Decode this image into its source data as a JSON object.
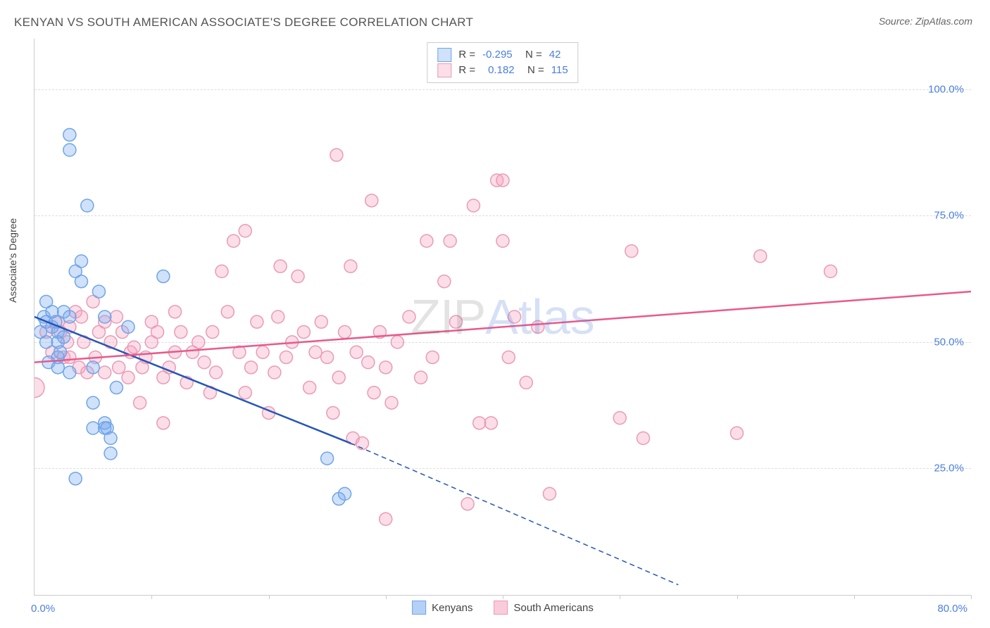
{
  "title": "KENYAN VS SOUTH AMERICAN ASSOCIATE'S DEGREE CORRELATION CHART",
  "source": "Source: ZipAtlas.com",
  "ylabel": "Associate's Degree",
  "watermark": {
    "zip": "ZIP",
    "atlas": "Atlas"
  },
  "chart": {
    "type": "scatter",
    "xlim": [
      0,
      80
    ],
    "ylim": [
      0,
      110
    ],
    "xticks": [
      10,
      20,
      30,
      40,
      50,
      60,
      70,
      80
    ],
    "yticks": [
      25,
      50,
      75,
      100
    ],
    "ytick_labels": [
      "25.0%",
      "50.0%",
      "75.0%",
      "100.0%"
    ],
    "xaxis_left_label": "0.0%",
    "xaxis_right_label": "80.0%",
    "background_color": "#ffffff",
    "grid_color": "#dddddd",
    "axis_color": "#cccccc",
    "tick_label_color": "#4a7fe0",
    "marker_radius": 9,
    "marker_radius_large": 14,
    "marker_stroke_width": 1.5,
    "trend_line_width": 2.5,
    "dash_pattern": "7,5",
    "series": [
      {
        "name": "Kenyans",
        "fill_color": "rgba(120,170,240,0.35)",
        "stroke_color": "#6fa5e8",
        "line_color": "#2456b8",
        "R": "-0.295",
        "N": "42",
        "trend": {
          "x1": 0,
          "y1": 55,
          "x2": 27,
          "y2": 30,
          "dash_to_x": 55,
          "dash_to_y": 2
        },
        "points": [
          [
            0.5,
            52
          ],
          [
            0.8,
            55
          ],
          [
            1,
            58
          ],
          [
            1,
            54
          ],
          [
            1,
            50
          ],
          [
            1.2,
            46
          ],
          [
            1.5,
            56
          ],
          [
            1.5,
            53
          ],
          [
            1.8,
            54
          ],
          [
            2,
            52
          ],
          [
            2,
            47
          ],
          [
            2,
            45
          ],
          [
            2,
            50
          ],
          [
            2.2,
            48
          ],
          [
            2.5,
            56
          ],
          [
            2.5,
            51
          ],
          [
            3,
            44
          ],
          [
            3,
            55
          ],
          [
            3,
            91
          ],
          [
            3,
            88
          ],
          [
            3.5,
            23
          ],
          [
            3.5,
            64
          ],
          [
            4,
            66
          ],
          [
            4,
            62
          ],
          [
            4.5,
            77
          ],
          [
            5,
            45
          ],
          [
            5,
            38
          ],
          [
            5,
            33
          ],
          [
            5.5,
            60
          ],
          [
            6,
            55
          ],
          [
            6,
            34
          ],
          [
            6,
            33
          ],
          [
            6.2,
            33
          ],
          [
            6.5,
            31
          ],
          [
            6.5,
            28
          ],
          [
            7,
            41
          ],
          [
            8,
            53
          ],
          [
            11,
            63
          ],
          [
            25,
            27
          ],
          [
            26,
            19
          ],
          [
            26.5,
            20
          ]
        ]
      },
      {
        "name": "South Americans",
        "fill_color": "rgba(245,160,190,0.35)",
        "stroke_color": "#ea9bb5",
        "line_color": "#e85a8c",
        "R": "0.182",
        "N": "115",
        "trend": {
          "x1": 0,
          "y1": 46,
          "x2": 80,
          "y2": 60
        },
        "points": [
          [
            0,
            41,
            "large"
          ],
          [
            1,
            52
          ],
          [
            1.5,
            48
          ],
          [
            2,
            54
          ],
          [
            2.2,
            52
          ],
          [
            2.5,
            47
          ],
          [
            2.8,
            50
          ],
          [
            3,
            53
          ],
          [
            3,
            47
          ],
          [
            3.5,
            56
          ],
          [
            3.8,
            45
          ],
          [
            4,
            55
          ],
          [
            4.2,
            50
          ],
          [
            4.5,
            44
          ],
          [
            5,
            58
          ],
          [
            5.2,
            47
          ],
          [
            5.5,
            52
          ],
          [
            6,
            54
          ],
          [
            6,
            44
          ],
          [
            6.5,
            50
          ],
          [
            7,
            55
          ],
          [
            7.2,
            45
          ],
          [
            7.5,
            52
          ],
          [
            8,
            43
          ],
          [
            8.2,
            48
          ],
          [
            8.5,
            49
          ],
          [
            9,
            38
          ],
          [
            9.2,
            45
          ],
          [
            9.5,
            47
          ],
          [
            10,
            50
          ],
          [
            10,
            54
          ],
          [
            10.5,
            52
          ],
          [
            11,
            43
          ],
          [
            11,
            34
          ],
          [
            11.5,
            45
          ],
          [
            12,
            56
          ],
          [
            12,
            48
          ],
          [
            12.5,
            52
          ],
          [
            13,
            42
          ],
          [
            13.5,
            48
          ],
          [
            14,
            50
          ],
          [
            14.5,
            46
          ],
          [
            15,
            40
          ],
          [
            15.2,
            52
          ],
          [
            15.5,
            44
          ],
          [
            16,
            64
          ],
          [
            16.5,
            56
          ],
          [
            17,
            70
          ],
          [
            17.5,
            48
          ],
          [
            18,
            40
          ],
          [
            18,
            72
          ],
          [
            18.5,
            45
          ],
          [
            19,
            54
          ],
          [
            19.5,
            48
          ],
          [
            20,
            36
          ],
          [
            20.5,
            44
          ],
          [
            20.8,
            55
          ],
          [
            21,
            65
          ],
          [
            21.5,
            47
          ],
          [
            22,
            50
          ],
          [
            22.5,
            63
          ],
          [
            23,
            52
          ],
          [
            23.5,
            41
          ],
          [
            24,
            48
          ],
          [
            24.5,
            54
          ],
          [
            25,
            47
          ],
          [
            25.5,
            36
          ],
          [
            25.8,
            87
          ],
          [
            26,
            43
          ],
          [
            26.5,
            52
          ],
          [
            27,
            65
          ],
          [
            27.2,
            31
          ],
          [
            27.5,
            48
          ],
          [
            28,
            30
          ],
          [
            28.5,
            46
          ],
          [
            28.8,
            78
          ],
          [
            29,
            40
          ],
          [
            29.5,
            52
          ],
          [
            30,
            45
          ],
          [
            30,
            15
          ],
          [
            30.5,
            38
          ],
          [
            31,
            50
          ],
          [
            32,
            55
          ],
          [
            33,
            43
          ],
          [
            33.5,
            70
          ],
          [
            34,
            47
          ],
          [
            35,
            62
          ],
          [
            35.5,
            70
          ],
          [
            36,
            54
          ],
          [
            37,
            18
          ],
          [
            37.5,
            77
          ],
          [
            38,
            34
          ],
          [
            39,
            34
          ],
          [
            39.5,
            82
          ],
          [
            40,
            70
          ],
          [
            40,
            82
          ],
          [
            40.5,
            47
          ],
          [
            41,
            55
          ],
          [
            42,
            42
          ],
          [
            43,
            53
          ],
          [
            44,
            20
          ],
          [
            50,
            35
          ],
          [
            51,
            68
          ],
          [
            52,
            31
          ],
          [
            60,
            32
          ],
          [
            62,
            67
          ],
          [
            68,
            64
          ]
        ]
      }
    ],
    "legend_top": {
      "border_color": "#cccccc",
      "bg_color": "#ffffff"
    },
    "legend_bottom": [
      {
        "label": "Kenyans",
        "fill": "rgba(120,170,240,0.55)",
        "stroke": "#6fa5e8"
      },
      {
        "label": "South Americans",
        "fill": "rgba(245,160,190,0.55)",
        "stroke": "#ea9bb5"
      }
    ]
  }
}
